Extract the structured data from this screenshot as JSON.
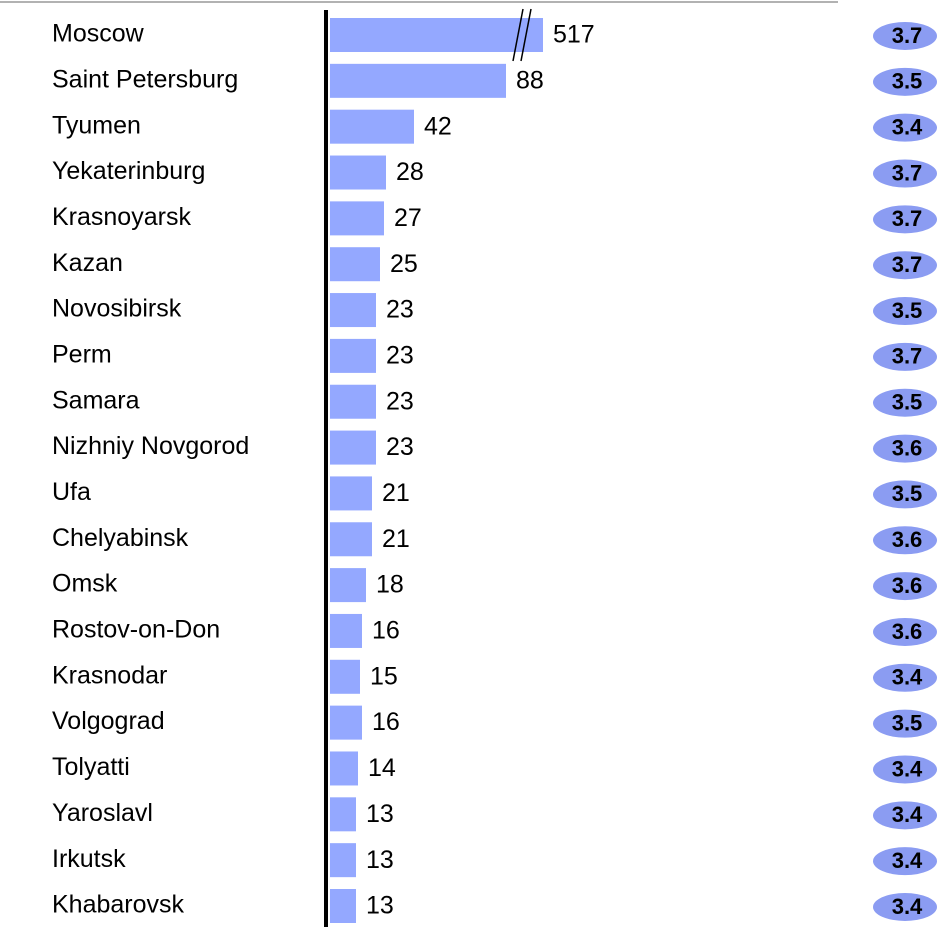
{
  "chart_data": {
    "type": "bar",
    "orientation": "horizontal",
    "axis_break": true,
    "color": "#94a8ff",
    "badge_color": "#8b9cf2",
    "categories": [
      "Moscow",
      "Saint Petersburg",
      "Tyumen",
      "Yekaterinburg",
      "Krasnoyarsk",
      "Kazan",
      "Novosibirsk",
      "Perm",
      "Samara",
      "Nizhniy Novgorod",
      "Ufa",
      "Chelyabinsk",
      "Omsk",
      "Rostov-on-Don",
      "Krasnodar",
      "Volgograd",
      "Tolyatti",
      "Yaroslavl",
      "Irkutsk",
      "Khabarovsk"
    ],
    "values": [
      517,
      88,
      42,
      28,
      27,
      25,
      23,
      23,
      23,
      23,
      21,
      21,
      18,
      16,
      15,
      16,
      14,
      13,
      13,
      13
    ],
    "ratings": [
      3.7,
      3.5,
      3.4,
      3.7,
      3.7,
      3.7,
      3.5,
      3.7,
      3.5,
      3.6,
      3.5,
      3.6,
      3.6,
      3.6,
      3.4,
      3.5,
      3.4,
      3.4,
      3.4,
      3.4
    ]
  }
}
